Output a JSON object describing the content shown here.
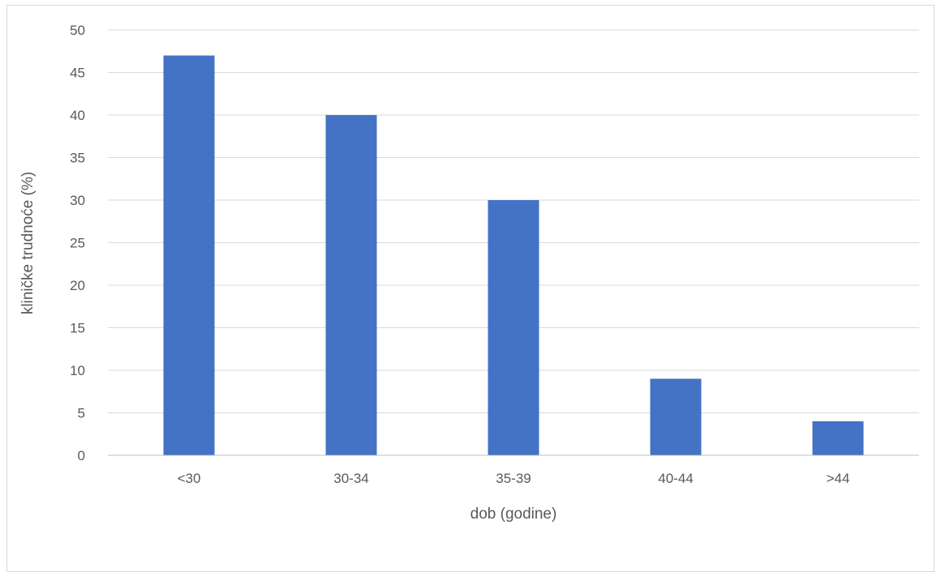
{
  "chart_data": {
    "type": "bar",
    "title": "",
    "xlabel": "dob (godine)",
    "ylabel": "kliničke trudnoće (%)",
    "categories": [
      "<30",
      "30-34",
      "35-39",
      "40-44",
      ">44"
    ],
    "values": [
      47,
      40,
      30,
      9,
      4
    ],
    "ylim": [
      0,
      50
    ],
    "yticks": [
      0,
      5,
      10,
      15,
      20,
      25,
      30,
      35,
      40,
      45,
      50
    ],
    "grid": true,
    "bar_color": "#4472C4",
    "grid_color": "#D9D9D9",
    "axis_color": "#BFBFBF",
    "text_color": "#595959"
  }
}
